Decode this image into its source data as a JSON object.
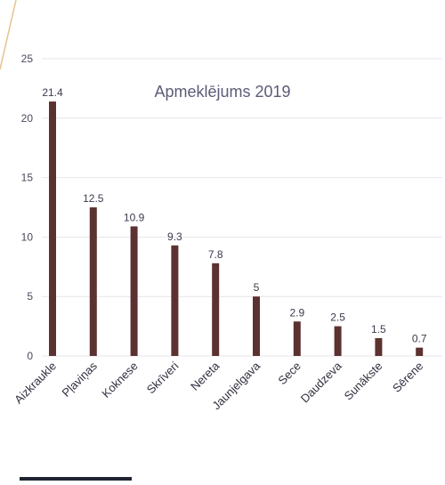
{
  "chart_data": {
    "type": "bar",
    "title": "Apmeklējums 2019",
    "categories": [
      "Aizkraukle",
      "Pļaviņas",
      "Koknese",
      "Skrīveri",
      "Nereta",
      "Jaunjelgava",
      "Sece",
      "Daudzeva",
      "Sunākste",
      "Sērene"
    ],
    "values": [
      21.4,
      12.5,
      10.9,
      9.3,
      7.8,
      5,
      2.9,
      2.5,
      1.5,
      0.7
    ],
    "value_labels": [
      "21.4",
      "12.5",
      "10.9",
      "9.3",
      "7.8",
      "5",
      "2.9",
      "2.5",
      "1.5",
      "0.7"
    ],
    "ylim": [
      0,
      25
    ],
    "yticks": [
      "0",
      "5",
      "10",
      "15",
      "20",
      "25"
    ],
    "grid": true,
    "legend": "none"
  },
  "colors": {
    "bar": "#5c3230",
    "grid": "#e6e6ec",
    "decor_line": "#e3c48e",
    "footer_strip": "#1f2430"
  }
}
